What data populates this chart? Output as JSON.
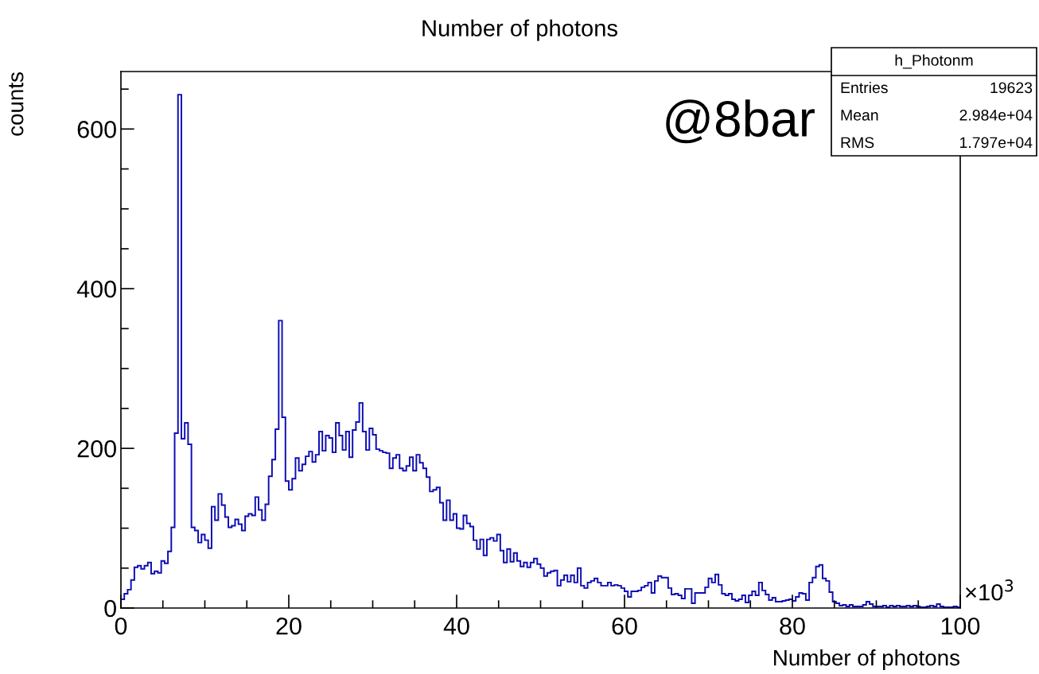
{
  "chart_data": {
    "type": "histogram",
    "title": "Number of photons",
    "xlabel": "Number of photons",
    "ylabel": "counts",
    "color": "#0c0cb4",
    "bins": [
      0,
      0.4,
      0.8,
      1.2,
      1.6,
      2,
      2.4,
      2.8,
      3.2,
      3.6,
      4,
      4.4,
      4.8,
      5.2,
      5.6,
      6,
      6.4,
      6.8,
      7.2,
      7.6,
      8,
      8.4,
      8.8,
      9.2,
      9.6,
      10,
      10.4,
      10.8,
      11.2,
      11.6,
      12,
      12.4,
      12.8,
      13.2,
      13.6,
      14,
      14.4,
      14.8,
      15.2,
      15.6,
      16,
      16.4,
      16.8,
      17.2,
      17.6,
      18,
      18.4,
      18.8,
      19.2,
      19.6,
      20,
      20.4,
      20.8,
      21.2,
      21.6,
      22,
      22.4,
      22.8,
      23.2,
      23.6,
      24,
      24.4,
      24.8,
      25.2,
      25.6,
      26,
      26.4,
      26.8,
      27.2,
      27.6,
      28,
      28.4,
      28.8,
      29.2,
      29.6,
      30,
      30.4,
      30.8,
      31.2,
      31.6,
      32,
      32.4,
      32.8,
      33.2,
      33.6,
      34,
      34.4,
      34.8,
      35.2,
      35.6,
      36,
      36.4,
      36.8,
      37.2,
      37.6,
      38,
      38.4,
      38.8,
      39.2,
      39.6,
      40,
      40.4,
      40.8,
      41.2,
      41.6,
      42,
      42.4,
      42.8,
      43.2,
      43.6,
      44,
      44.4,
      44.8,
      45.2,
      45.6,
      46,
      46.4,
      46.8,
      47.2,
      47.6,
      48,
      48.4,
      48.8,
      49.2,
      49.6,
      50,
      50.4,
      50.8,
      51.2,
      51.6,
      52,
      52.4,
      52.8,
      53.2,
      53.6,
      54,
      54.4,
      54.8,
      55.2,
      55.6,
      56,
      56.4,
      56.8,
      57.2,
      57.6,
      58,
      58.4,
      58.8,
      59.2,
      59.6,
      60,
      60.4,
      60.8,
      61.2,
      61.6,
      62,
      62.4,
      62.8,
      63.2,
      63.6,
      64,
      64.4,
      64.8,
      65.2,
      65.6,
      66,
      66.4,
      66.8,
      67.2,
      67.6,
      68,
      68.4,
      68.8,
      69.2,
      69.6,
      70,
      70.4,
      70.8,
      71.2,
      71.6,
      72,
      72.4,
      72.8,
      73.2,
      73.6,
      74,
      74.4,
      74.8,
      75.2,
      75.6,
      76,
      76.4,
      76.8,
      77.2,
      77.6,
      78,
      78.4,
      78.8,
      79.2,
      79.6,
      80,
      80.4,
      80.8,
      81.2,
      81.6,
      82,
      82.4,
      82.8,
      83.2,
      83.6,
      84,
      84.4,
      84.8,
      85.2,
      85.6,
      86,
      86.4,
      86.8,
      87.2,
      87.6,
      88,
      88.4,
      88.8,
      89.2,
      89.6,
      90,
      90.4,
      90.8,
      91.2,
      91.6,
      92,
      92.4,
      92.8,
      93.2,
      93.6,
      94,
      94.4,
      94.8,
      95.2,
      95.6,
      96,
      96.4,
      96.8,
      97.2,
      97.6,
      98,
      98.4,
      98.8,
      99.2,
      99.6,
      100
    ],
    "values": [
      11,
      18,
      23,
      35,
      51,
      53,
      49,
      53,
      57,
      43,
      46,
      44,
      59,
      56,
      71,
      101,
      219,
      643,
      212,
      232,
      205,
      101,
      97,
      82,
      92,
      85,
      75,
      127,
      110,
      143,
      129,
      114,
      101,
      103,
      111,
      105,
      97,
      115,
      118,
      116,
      139,
      123,
      110,
      130,
      165,
      186,
      224,
      360,
      239,
      159,
      148,
      162,
      188,
      172,
      180,
      190,
      196,
      183,
      192,
      221,
      197,
      216,
      213,
      195,
      232,
      216,
      198,
      221,
      189,
      223,
      233,
      257,
      221,
      198,
      225,
      217,
      199,
      197,
      195,
      194,
      175,
      188,
      192,
      175,
      172,
      178,
      189,
      172,
      192,
      182,
      175,
      164,
      146,
      148,
      151,
      132,
      110,
      135,
      110,
      118,
      100,
      99,
      116,
      106,
      102,
      85,
      74,
      86,
      66,
      86,
      88,
      84,
      92,
      72,
      57,
      74,
      58,
      69,
      59,
      52,
      57,
      51,
      57,
      62,
      55,
      50,
      40,
      44,
      46,
      47,
      28,
      35,
      41,
      33,
      41,
      32,
      50,
      28,
      25,
      32,
      34,
      37,
      32,
      28,
      28,
      32,
      28,
      29,
      28,
      25,
      21,
      14,
      21,
      21,
      22,
      26,
      28,
      32,
      19,
      34,
      40,
      38,
      38,
      25,
      17,
      18,
      16,
      12,
      24,
      24,
      6,
      19,
      19,
      19,
      26,
      37,
      32,
      42,
      29,
      18,
      16,
      18,
      11,
      9,
      11,
      16,
      7,
      16,
      21,
      16,
      32,
      22,
      17,
      10,
      13,
      8,
      8,
      9,
      10,
      11,
      9,
      14,
      19,
      18,
      10,
      32,
      38,
      52,
      54,
      37,
      34,
      20,
      8,
      6,
      3,
      4,
      2,
      4,
      2,
      2,
      2,
      4,
      8,
      5,
      2,
      2,
      2,
      3,
      1,
      3,
      2,
      3,
      2,
      2,
      3,
      2,
      3,
      2,
      1,
      1,
      2,
      3,
      2,
      5,
      2,
      1,
      1,
      1,
      2,
      1
    ],
    "xlim": [
      0,
      100
    ],
    "ylim": [
      0,
      672
    ],
    "xticks": [
      0,
      {
        "value": 5,
        "label": null
      },
      {
        "value": 10,
        "label": null
      },
      {
        "value": 15,
        "label": null
      },
      20,
      {
        "value": 25,
        "label": null
      },
      {
        "value": 30,
        "label": null
      },
      {
        "value": 35,
        "label": null
      },
      40,
      {
        "value": 45,
        "label": null
      },
      {
        "value": 50,
        "label": null
      },
      {
        "value": 55,
        "label": null
      },
      60,
      {
        "value": 65,
        "label": null
      },
      {
        "value": 70,
        "label": null
      },
      {
        "value": 75,
        "label": null
      },
      80,
      {
        "value": 85,
        "label": null
      },
      {
        "value": 90,
        "label": null
      },
      {
        "value": 95,
        "label": null
      },
      100
    ],
    "yticks": [
      0,
      {
        "value": 50,
        "label": null
      },
      {
        "value": 100,
        "label": null
      },
      {
        "value": 150,
        "label": null
      },
      200,
      {
        "value": 250,
        "label": null
      },
      {
        "value": 300,
        "label": null
      },
      {
        "value": 350,
        "label": null
      },
      400,
      {
        "value": 450,
        "label": null
      },
      {
        "value": 500,
        "label": null
      },
      {
        "value": 550,
        "label": null
      },
      600,
      {
        "value": 650,
        "label": null
      }
    ],
    "annotations": [
      "@8bar",
      "×10$^{3}$",
      "h_Photonm",
      "Entries",
      "19623",
      "Mean",
      "2.984e+04",
      "RMS",
      "1.797e+04"
    ]
  }
}
